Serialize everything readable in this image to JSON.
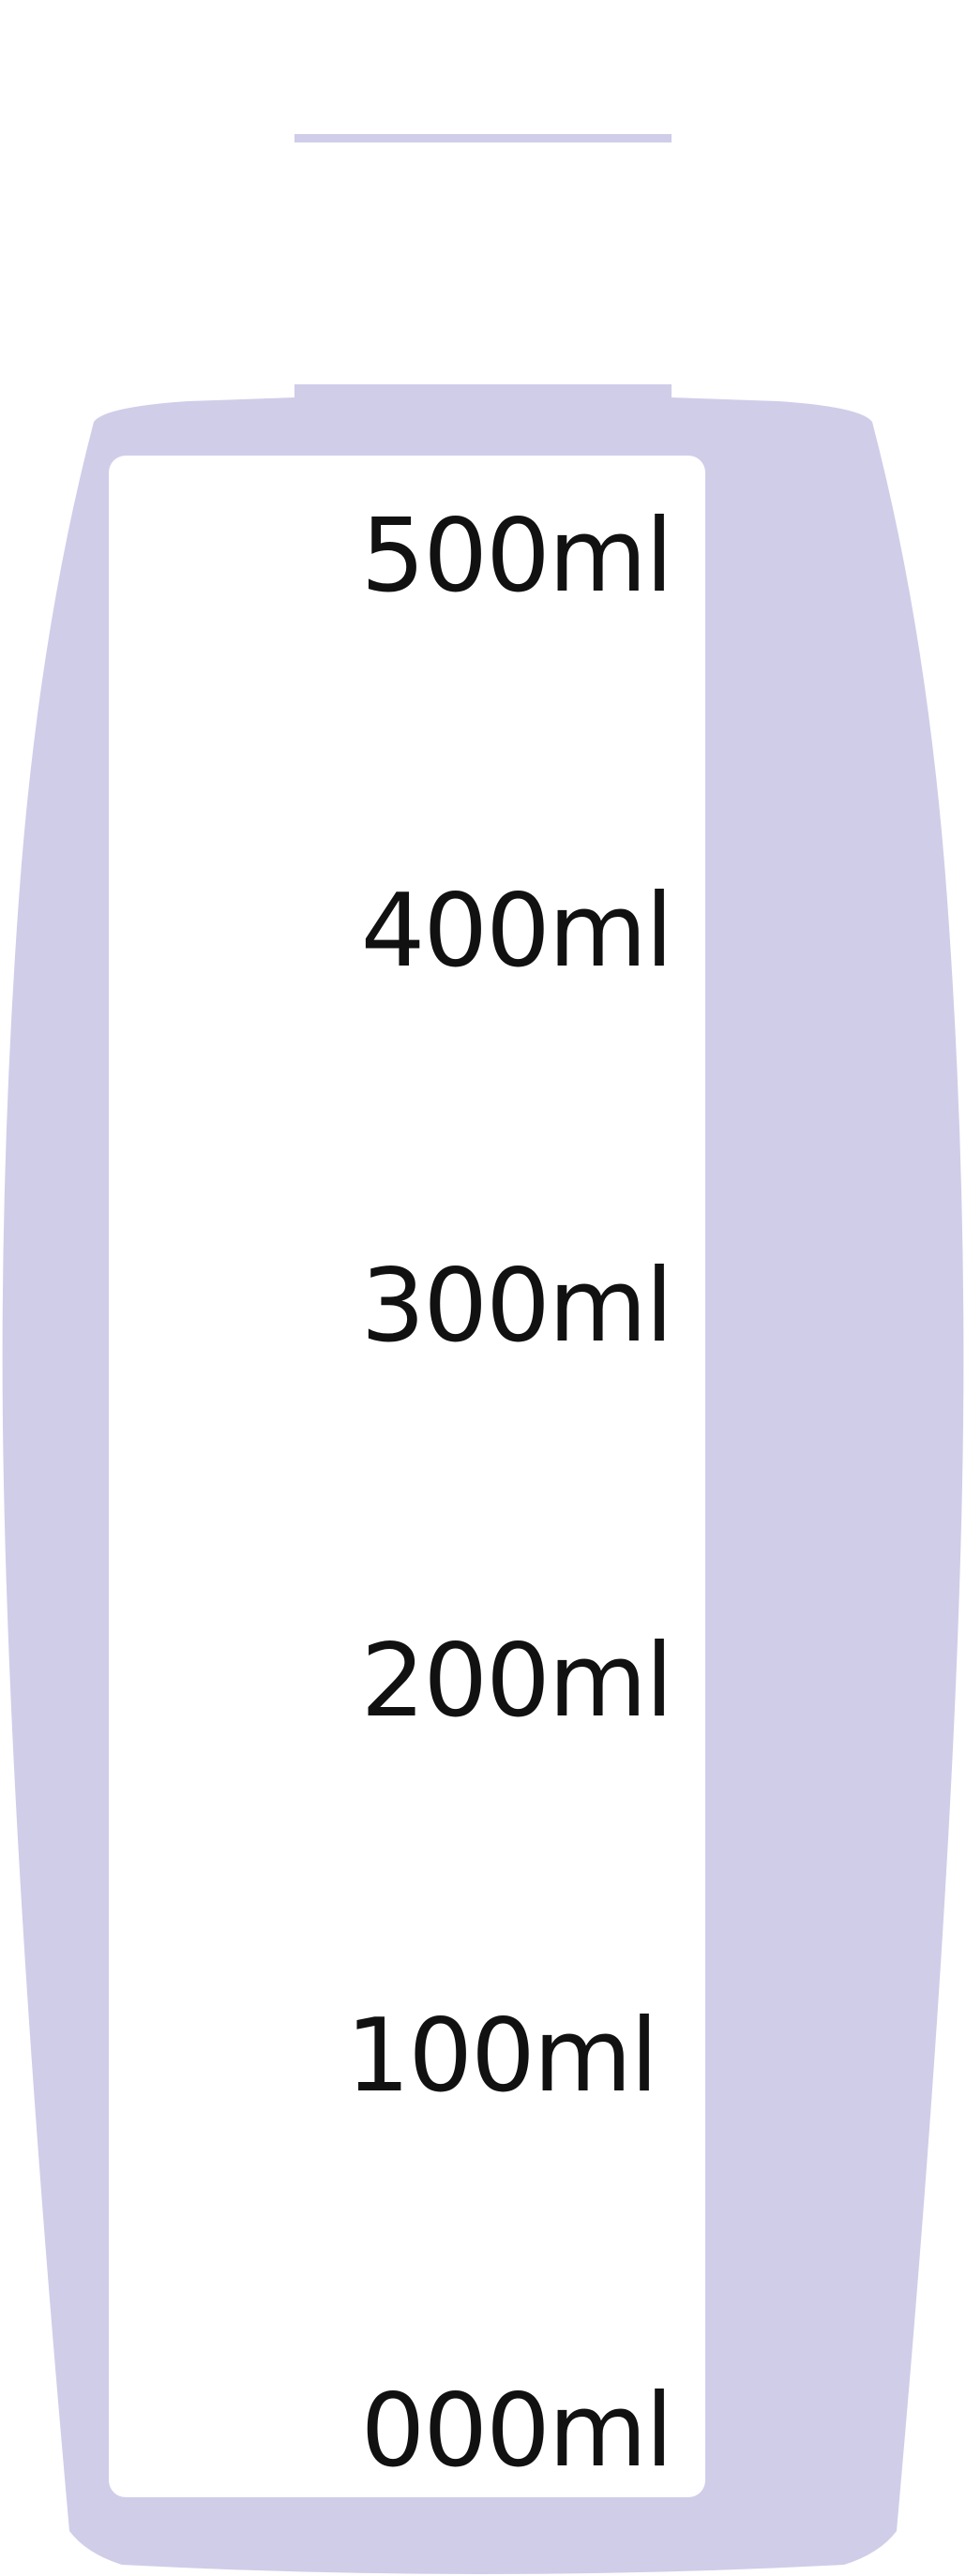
{
  "colors": {
    "bottle": "#d0cde9",
    "label_panel": "#ffffff",
    "text": "#111111"
  },
  "scale": {
    "unit": "ml",
    "marks": [
      {
        "value": 500,
        "label": "500ml"
      },
      {
        "value": 400,
        "label": "400ml"
      },
      {
        "value": 300,
        "label": "300ml"
      },
      {
        "value": 200,
        "label": "200ml"
      },
      {
        "value": 100,
        "label": "100ml"
      },
      {
        "value": 0,
        "label": "000ml"
      }
    ]
  }
}
